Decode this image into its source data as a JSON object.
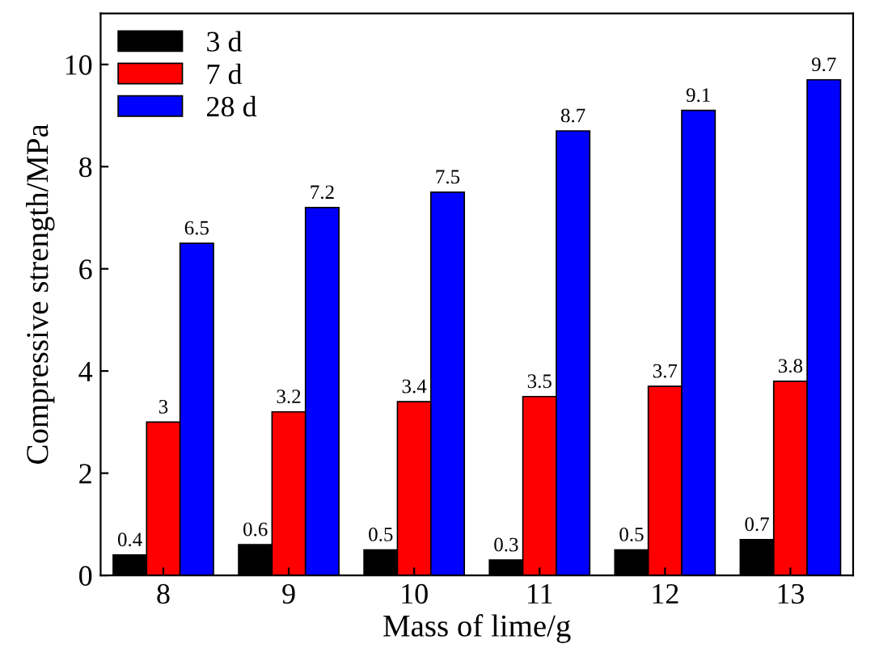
{
  "chart_data": {
    "type": "bar",
    "xlabel": "Mass of lime/g",
    "ylabel": "Compressive strength/MPa",
    "categories": [
      "8",
      "9",
      "10",
      "11",
      "12",
      "13"
    ],
    "series": [
      {
        "name": "3 d",
        "color": "#000000",
        "values": [
          0.4,
          0.6,
          0.5,
          0.3,
          0.5,
          0.7
        ]
      },
      {
        "name": "7 d",
        "color": "#ff0000",
        "values": [
          3,
          3.2,
          3.4,
          3.5,
          3.7,
          3.8
        ]
      },
      {
        "name": "28 d",
        "color": "#0000ff",
        "values": [
          6.5,
          7.2,
          7.5,
          8.7,
          9.1,
          9.7
        ]
      }
    ],
    "ylim": [
      0,
      11
    ],
    "yticks": [
      0,
      2,
      4,
      6,
      8,
      10
    ],
    "data_labels": true,
    "legend": "top left",
    "grid": false
  }
}
